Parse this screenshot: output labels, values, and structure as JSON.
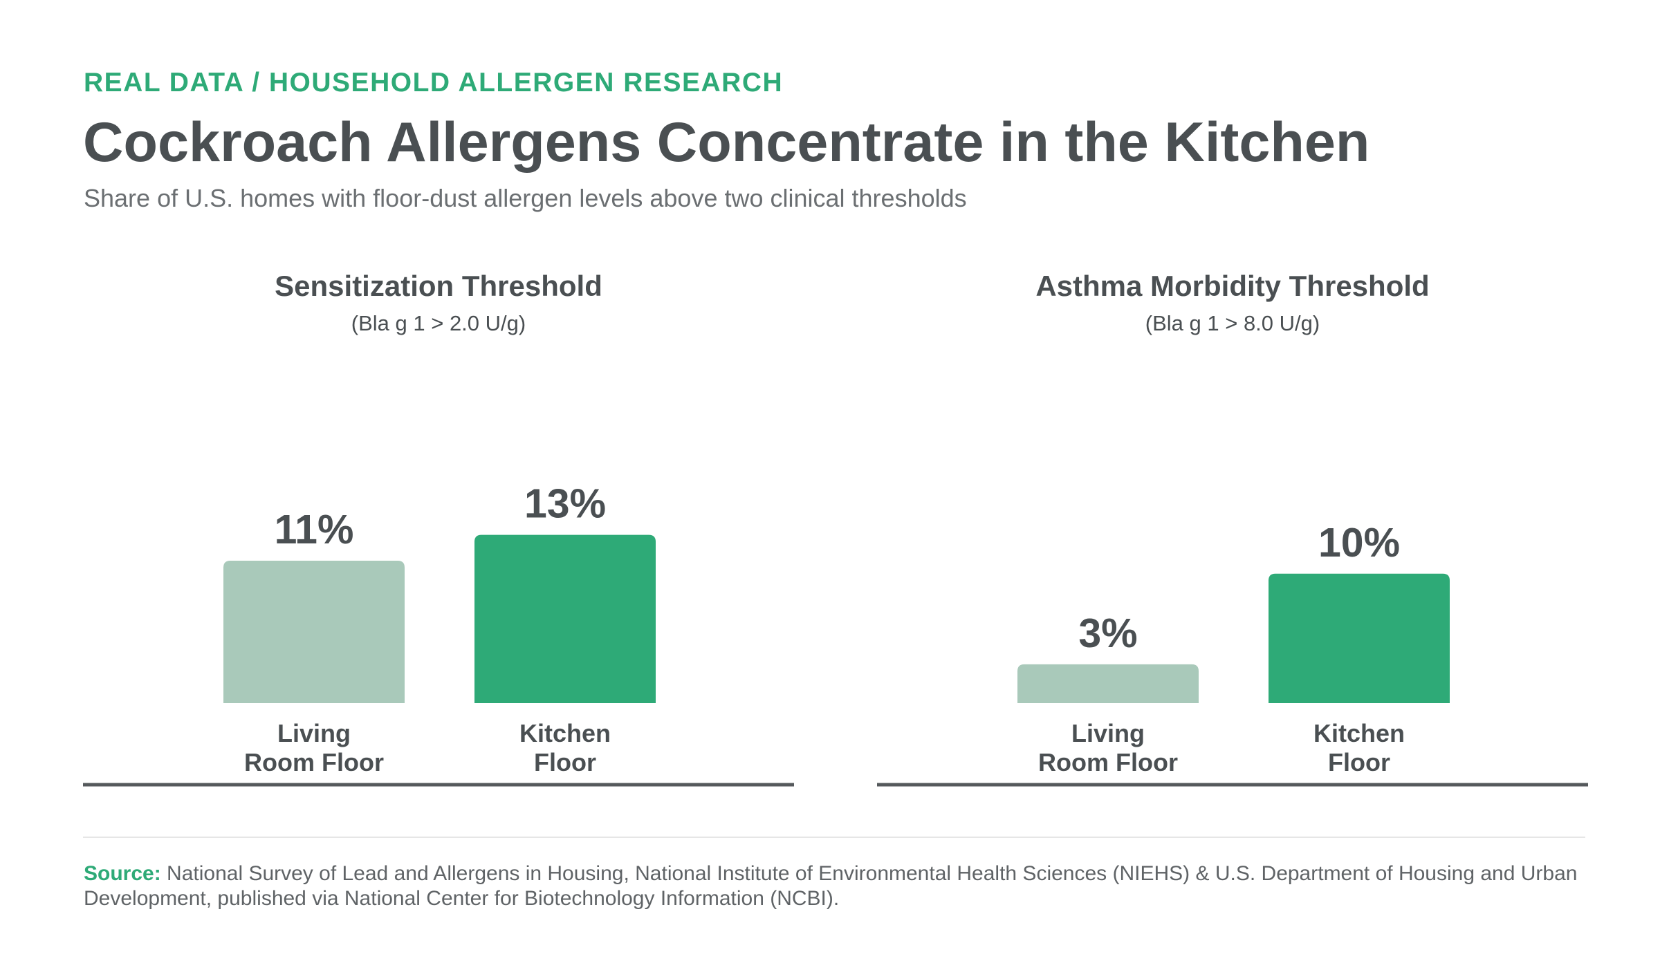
{
  "header": {
    "eyebrow": "REAL DATA / HOUSEHOLD ALLERGEN RESEARCH",
    "title": "Cockroach Allergens Concentrate in the Kitchen",
    "subtitle": "Share of U.S. homes with floor-dust allergen levels above two clinical thresholds"
  },
  "colors": {
    "accent": "#2eaa77",
    "muted_bar": "#a9c9ba",
    "text": "#4a4f52",
    "baseline": "#55595c"
  },
  "chart_data": [
    {
      "type": "bar",
      "title": "Sensitization Threshold",
      "subtitle": "(Bla g 1 > 2.0 U/g)",
      "categories": [
        "Living Room Floor",
        "Kitchen Floor"
      ],
      "category_lines": [
        [
          "Living",
          "Room Floor"
        ],
        [
          "Kitchen",
          "Floor"
        ]
      ],
      "values": [
        11,
        13
      ],
      "value_labels": [
        "11%",
        "13%"
      ],
      "unit": "%",
      "ylim": [
        0,
        18
      ],
      "grid": false,
      "bar_colors": [
        "#a9c9ba",
        "#2eaa77"
      ]
    },
    {
      "type": "bar",
      "title": "Asthma Morbidity Threshold",
      "subtitle": "(Bla g 1 > 8.0 U/g)",
      "categories": [
        "Living Room Floor",
        "Kitchen Floor"
      ],
      "category_lines": [
        [
          "Living",
          "Room Floor"
        ],
        [
          "Kitchen",
          "Floor"
        ]
      ],
      "values": [
        3,
        10
      ],
      "value_labels": [
        "3%",
        "10%"
      ],
      "unit": "%",
      "ylim": [
        0,
        18
      ],
      "grid": false,
      "bar_colors": [
        "#a9c9ba",
        "#2eaa77"
      ]
    }
  ],
  "footer": {
    "source_label": "Source:",
    "source_text": " National Survey of Lead and Allergens in Housing, National Institute of Environmental Health Sciences (NIEHS) & U.S. Department of Housing and Urban Development, published via National Center for Biotechnology Information (NCBI)."
  }
}
